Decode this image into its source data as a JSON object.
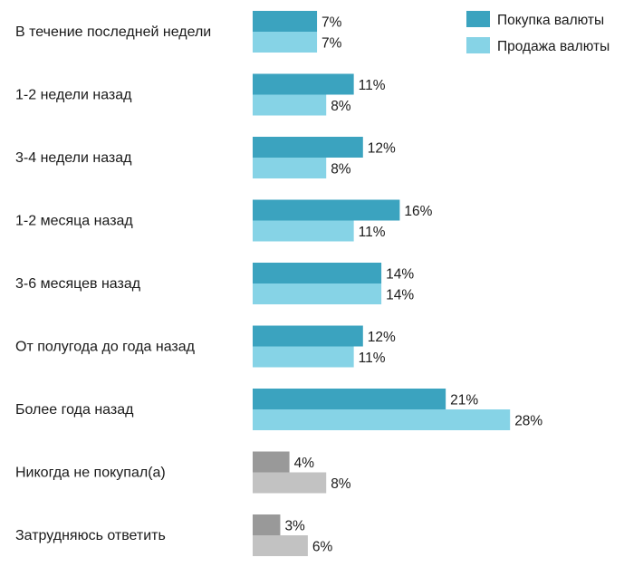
{
  "chart_data": {
    "type": "bar",
    "orientation": "horizontal",
    "categories": [
      "В течение последней недели",
      "1-2 недели назад",
      "3-4 недели назад",
      "1-2 месяца назад",
      "3-6 месяцев назад",
      "От полугода до года назад",
      "Более года назад",
      "Никогда не покупал(а)",
      "Затрудняюсь ответить"
    ],
    "series": [
      {
        "name": "Покупка валюты",
        "values": [
          7,
          11,
          12,
          16,
          14,
          12,
          21,
          4,
          3
        ]
      },
      {
        "name": "Продажа валюты",
        "values": [
          7,
          8,
          8,
          11,
          14,
          11,
          28,
          8,
          6
        ]
      }
    ],
    "value_labels": [
      [
        "7%",
        "11%",
        "12%",
        "16%",
        "14%",
        "12%",
        "21%",
        "4%",
        "3%"
      ],
      [
        "7%",
        "8%",
        "8%",
        "11%",
        "14%",
        "11%",
        "28%",
        "8%",
        "6%"
      ]
    ],
    "value_unit": "%",
    "legend_position": "top-right",
    "grid": false,
    "colors": {
      "series": [
        "#3ba3bf",
        "#86d3e6"
      ],
      "series_gray": [
        "#999999",
        "#c2c2c2"
      ],
      "gray_categories": [
        7,
        8
      ]
    }
  }
}
